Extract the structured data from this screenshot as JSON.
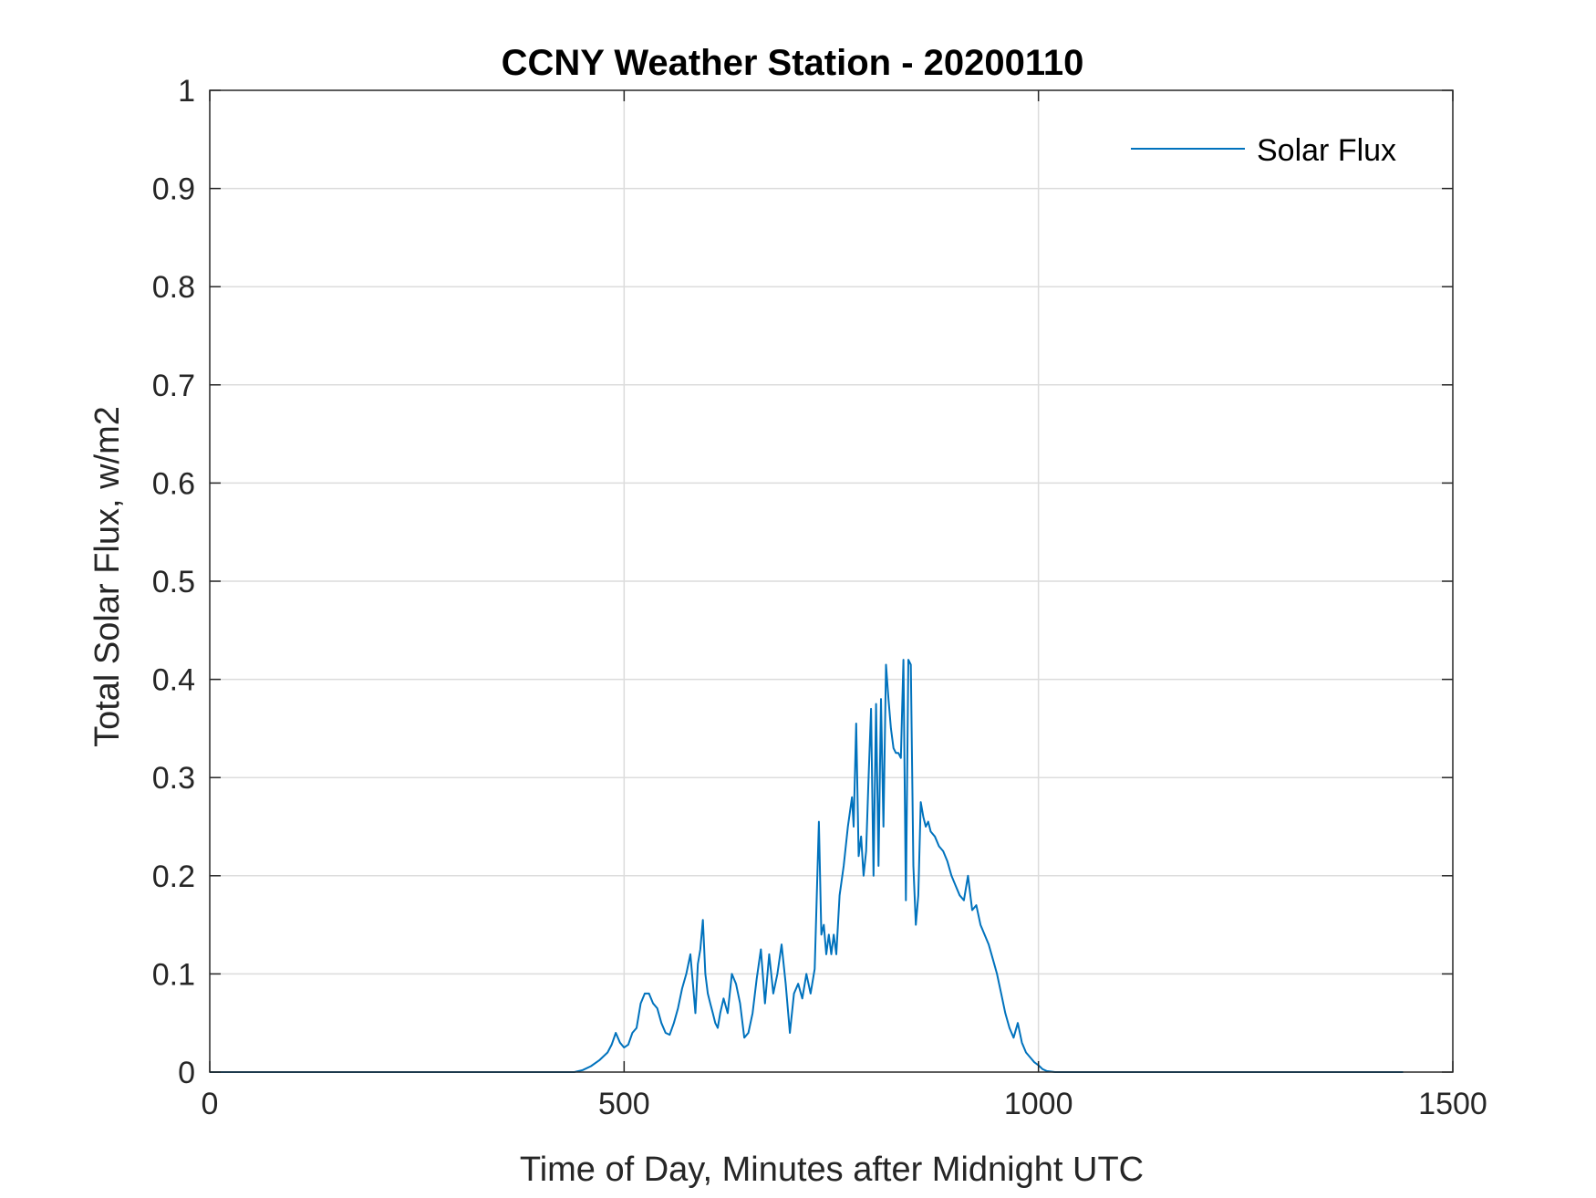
{
  "chart_data": {
    "type": "line",
    "title": "CCNY Weather Station - 20200110",
    "xlabel": "Time of Day, Minutes after Midnight UTC",
    "ylabel": "Total Solar Flux, w/m2",
    "xlim": [
      0,
      1500
    ],
    "ylim": [
      0,
      1
    ],
    "xticks": [
      0,
      500,
      1000,
      1500
    ],
    "xtick_labels": [
      "0",
      "500",
      "1000",
      "1500"
    ],
    "yticks": [
      0,
      0.1,
      0.2,
      0.3,
      0.4,
      0.5,
      0.6,
      0.7,
      0.8,
      0.9,
      1
    ],
    "ytick_labels": [
      "0",
      "0.1",
      "0.2",
      "0.3",
      "0.4",
      "0.5",
      "0.6",
      "0.7",
      "0.8",
      "0.9",
      "1"
    ],
    "grid": true,
    "legend_position": "top-right",
    "series": [
      {
        "name": "Solar Flux",
        "color": "#0072BD",
        "x": [
          0,
          440,
          450,
          460,
          470,
          480,
          485,
          490,
          495,
          500,
          505,
          510,
          515,
          520,
          525,
          530,
          535,
          540,
          545,
          550,
          555,
          560,
          565,
          570,
          575,
          580,
          583,
          586,
          589,
          592,
          595,
          598,
          601,
          604,
          607,
          610,
          613,
          616,
          620,
          625,
          630,
          635,
          640,
          645,
          650,
          655,
          660,
          665,
          670,
          675,
          680,
          685,
          690,
          695,
          700,
          705,
          710,
          715,
          720,
          725,
          730,
          735,
          738,
          741,
          744,
          747,
          750,
          753,
          756,
          760,
          765,
          770,
          775,
          777,
          780,
          783,
          786,
          789,
          792,
          795,
          798,
          801,
          804,
          807,
          810,
          813,
          816,
          819,
          822,
          825,
          828,
          831,
          834,
          837,
          840,
          843,
          846,
          849,
          852,
          855,
          858,
          861,
          864,
          867,
          870,
          875,
          880,
          885,
          890,
          895,
          900,
          905,
          910,
          915,
          920,
          925,
          930,
          935,
          940,
          945,
          950,
          955,
          960,
          965,
          970,
          975,
          980,
          985,
          990,
          995,
          1000,
          1005,
          1010,
          1020,
          1100,
          1200,
          1300,
          1440
        ],
        "y": [
          0,
          0,
          0.002,
          0.006,
          0.012,
          0.02,
          0.028,
          0.04,
          0.03,
          0.025,
          0.028,
          0.04,
          0.045,
          0.07,
          0.08,
          0.08,
          0.07,
          0.065,
          0.05,
          0.04,
          0.038,
          0.05,
          0.065,
          0.085,
          0.1,
          0.12,
          0.09,
          0.06,
          0.11,
          0.125,
          0.155,
          0.1,
          0.08,
          0.07,
          0.06,
          0.05,
          0.045,
          0.06,
          0.075,
          0.06,
          0.1,
          0.09,
          0.07,
          0.035,
          0.04,
          0.06,
          0.095,
          0.125,
          0.07,
          0.12,
          0.08,
          0.1,
          0.13,
          0.09,
          0.04,
          0.08,
          0.09,
          0.075,
          0.1,
          0.08,
          0.105,
          0.255,
          0.14,
          0.15,
          0.12,
          0.14,
          0.12,
          0.14,
          0.12,
          0.18,
          0.21,
          0.25,
          0.28,
          0.25,
          0.355,
          0.22,
          0.24,
          0.2,
          0.225,
          0.3,
          0.37,
          0.2,
          0.375,
          0.21,
          0.38,
          0.25,
          0.415,
          0.38,
          0.35,
          0.33,
          0.325,
          0.325,
          0.32,
          0.42,
          0.175,
          0.42,
          0.415,
          0.21,
          0.15,
          0.18,
          0.275,
          0.26,
          0.25,
          0.255,
          0.245,
          0.24,
          0.23,
          0.225,
          0.215,
          0.2,
          0.19,
          0.18,
          0.175,
          0.2,
          0.165,
          0.17,
          0.15,
          0.14,
          0.13,
          0.115,
          0.1,
          0.08,
          0.06,
          0.045,
          0.035,
          0.05,
          0.03,
          0.02,
          0.015,
          0.01,
          0.007,
          0.003,
          0.001,
          0,
          0,
          0,
          0,
          0
        ]
      }
    ]
  }
}
